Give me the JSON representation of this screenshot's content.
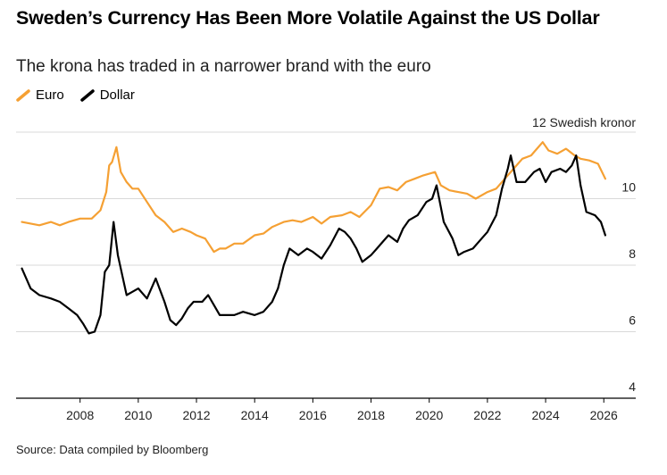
{
  "header": {
    "title": "Sweden’s Currency Has Been More Volatile Against the US Dollar",
    "subtitle": "The krona has traded in a narrower brand with the euro"
  },
  "legend": {
    "euro_label": "Euro",
    "dollar_label": "Dollar"
  },
  "footer": {
    "source": "Source: Data compiled by Bloomberg"
  },
  "colors": {
    "euro": "#F5A033",
    "dollar": "#000000",
    "grid": "#d9d9d9",
    "axis": "#000000"
  },
  "chart_data": {
    "type": "line",
    "title": "Sweden’s Currency Has Been More Volatile Against the US Dollar",
    "subtitle": "The krona has traded in a narrower brand with the euro",
    "xlabel": "",
    "ylabel": "",
    "y_unit_label": "12 Swedish kronor",
    "ylim": [
      4,
      12
    ],
    "xlim": [
      2005.8,
      2026.3
    ],
    "y_ticks": [
      4,
      6,
      8,
      10,
      12
    ],
    "y_tick_labels": [
      "4",
      "6",
      "8",
      "10",
      ""
    ],
    "x_ticks": [
      2008,
      2010,
      2012,
      2014,
      2016,
      2018,
      2020,
      2022,
      2024,
      2026
    ],
    "x_tick_labels": [
      "2008",
      "2010",
      "2012",
      "2014",
      "2016",
      "2018",
      "2020",
      "2022",
      "2024",
      "2026"
    ],
    "grid": true,
    "legend_position": "top-left",
    "series": [
      {
        "name": "Euro",
        "x": [
          2006.0,
          2006.3,
          2006.6,
          2007.0,
          2007.3,
          2007.6,
          2008.0,
          2008.4,
          2008.7,
          2008.9,
          2009.0,
          2009.1,
          2009.25,
          2009.4,
          2009.6,
          2009.8,
          2010.0,
          2010.3,
          2010.6,
          2010.9,
          2011.2,
          2011.5,
          2011.8,
          2012.0,
          2012.3,
          2012.6,
          2012.8,
          2013.0,
          2013.3,
          2013.6,
          2014.0,
          2014.3,
          2014.6,
          2015.0,
          2015.3,
          2015.6,
          2016.0,
          2016.3,
          2016.6,
          2017.0,
          2017.3,
          2017.6,
          2018.0,
          2018.3,
          2018.6,
          2018.9,
          2019.2,
          2019.5,
          2019.8,
          2020.0,
          2020.2,
          2020.4,
          2020.7,
          2021.0,
          2021.3,
          2021.6,
          2022.0,
          2022.3,
          2022.6,
          2022.9,
          2023.2,
          2023.5,
          2023.7,
          2023.9,
          2024.1,
          2024.4,
          2024.7,
          2025.0,
          2025.2,
          2025.5,
          2025.8,
          2026.05
        ],
        "values": [
          9.3,
          9.25,
          9.2,
          9.3,
          9.2,
          9.3,
          9.4,
          9.4,
          9.65,
          10.2,
          11.0,
          11.1,
          11.55,
          10.8,
          10.5,
          10.3,
          10.3,
          9.9,
          9.5,
          9.3,
          9.0,
          9.1,
          9.0,
          8.9,
          8.8,
          8.4,
          8.5,
          8.5,
          8.65,
          8.65,
          8.9,
          8.95,
          9.15,
          9.3,
          9.35,
          9.3,
          9.45,
          9.25,
          9.45,
          9.5,
          9.6,
          9.45,
          9.8,
          10.3,
          10.35,
          10.25,
          10.5,
          10.6,
          10.7,
          10.75,
          10.8,
          10.4,
          10.25,
          10.2,
          10.15,
          10.0,
          10.2,
          10.3,
          10.6,
          10.9,
          11.2,
          11.3,
          11.5,
          11.7,
          11.45,
          11.35,
          11.5,
          11.3,
          11.2,
          11.15,
          11.05,
          10.6
        ]
      },
      {
        "name": "Dollar",
        "x": [
          2006.0,
          2006.3,
          2006.6,
          2007.0,
          2007.3,
          2007.6,
          2007.9,
          2008.1,
          2008.3,
          2008.5,
          2008.7,
          2008.85,
          2009.0,
          2009.15,
          2009.3,
          2009.45,
          2009.6,
          2009.8,
          2010.0,
          2010.3,
          2010.6,
          2010.9,
          2011.1,
          2011.3,
          2011.5,
          2011.7,
          2011.9,
          2012.2,
          2012.4,
          2012.6,
          2012.8,
          2013.0,
          2013.3,
          2013.6,
          2014.0,
          2014.3,
          2014.6,
          2014.8,
          2015.0,
          2015.2,
          2015.5,
          2015.8,
          2016.0,
          2016.3,
          2016.6,
          2016.9,
          2017.1,
          2017.3,
          2017.5,
          2017.7,
          2018.0,
          2018.2,
          2018.4,
          2018.6,
          2018.9,
          2019.1,
          2019.3,
          2019.6,
          2019.9,
          2020.1,
          2020.25,
          2020.5,
          2020.8,
          2021.0,
          2021.2,
          2021.5,
          2021.8,
          2022.0,
          2022.3,
          2022.5,
          2022.7,
          2022.8,
          2023.0,
          2023.3,
          2023.6,
          2023.8,
          2024.0,
          2024.2,
          2024.5,
          2024.7,
          2024.9,
          2025.05,
          2025.2,
          2025.4,
          2025.7,
          2025.9,
          2026.05
        ],
        "values": [
          7.9,
          7.3,
          7.1,
          7.0,
          6.9,
          6.7,
          6.5,
          6.25,
          5.95,
          6.0,
          6.5,
          7.8,
          8.0,
          9.3,
          8.3,
          7.7,
          7.1,
          7.2,
          7.3,
          7.0,
          7.6,
          6.9,
          6.35,
          6.2,
          6.4,
          6.7,
          6.9,
          6.9,
          7.1,
          6.8,
          6.5,
          6.5,
          6.5,
          6.6,
          6.5,
          6.6,
          6.9,
          7.3,
          8.0,
          8.5,
          8.3,
          8.5,
          8.4,
          8.2,
          8.6,
          9.1,
          9.0,
          8.8,
          8.5,
          8.1,
          8.3,
          8.5,
          8.7,
          8.9,
          8.7,
          9.1,
          9.35,
          9.5,
          9.9,
          10.0,
          10.4,
          9.3,
          8.8,
          8.3,
          8.4,
          8.5,
          8.8,
          9.0,
          9.5,
          10.3,
          10.9,
          11.3,
          10.5,
          10.5,
          10.8,
          10.9,
          10.5,
          10.8,
          10.9,
          10.8,
          11.0,
          11.3,
          10.4,
          9.6,
          9.5,
          9.3,
          8.9
        ]
      }
    ]
  }
}
